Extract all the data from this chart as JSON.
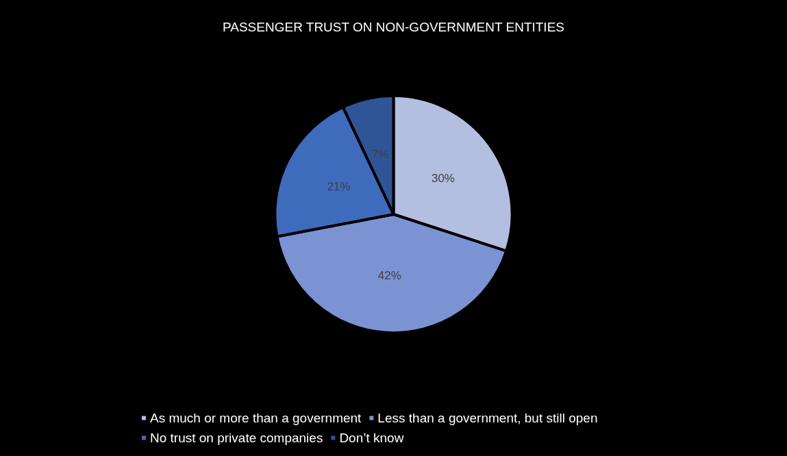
{
  "chart_data": {
    "type": "pie",
    "title": "PASSENGER TRUST ON NON-GOVERNMENT ENTITIES",
    "categories": [
      "As much or more than a government",
      "Less than a government, but still open",
      "No trust on private companies",
      "Don’t know"
    ],
    "values": [
      30,
      42,
      21,
      7
    ],
    "colors": [
      "#b4bee0",
      "#7b93d2",
      "#3f6bbd",
      "#2f5597"
    ],
    "value_labels": [
      "30%",
      "42%",
      "21%",
      "7%"
    ],
    "legend": "bottom"
  }
}
